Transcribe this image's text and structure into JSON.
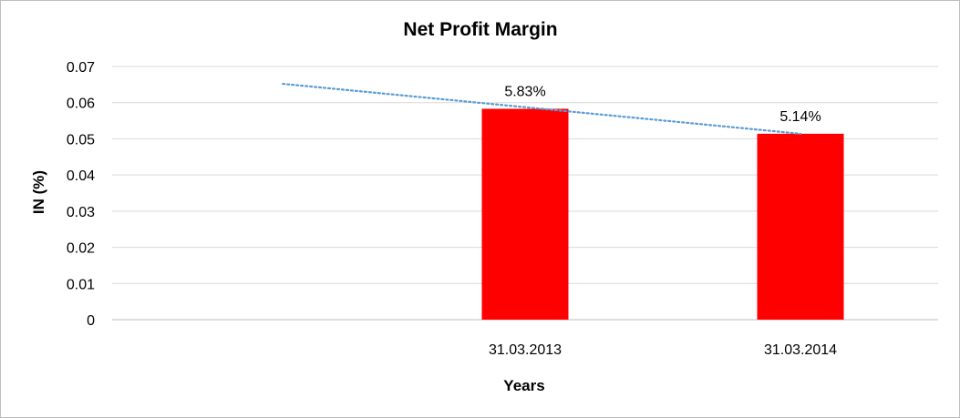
{
  "chart_data": {
    "type": "bar",
    "title": "Net Profit Margin",
    "xlabel": "Years",
    "ylabel": "IN (%)",
    "categories": [
      "",
      "31.03.2013",
      "31.03.2014"
    ],
    "values": [
      null,
      0.0583,
      0.0514
    ],
    "data_labels": [
      "",
      "5.83%",
      "5.14%"
    ],
    "ylim": [
      0,
      0.07
    ],
    "yticks": [
      0,
      0.01,
      0.02,
      0.03,
      0.04,
      0.05,
      0.06,
      0.07
    ],
    "ytick_labels": [
      "0",
      "0.01",
      "0.02",
      "0.03",
      "0.04",
      "0.05",
      "0.06",
      "0.07"
    ],
    "grid": true,
    "legend": "none",
    "bar_color": "#ff0000",
    "trendline": {
      "type": "linear",
      "style": "dotted",
      "color": "#5b9bd5",
      "values": [
        0.0652,
        0.0583,
        0.0514
      ]
    }
  }
}
